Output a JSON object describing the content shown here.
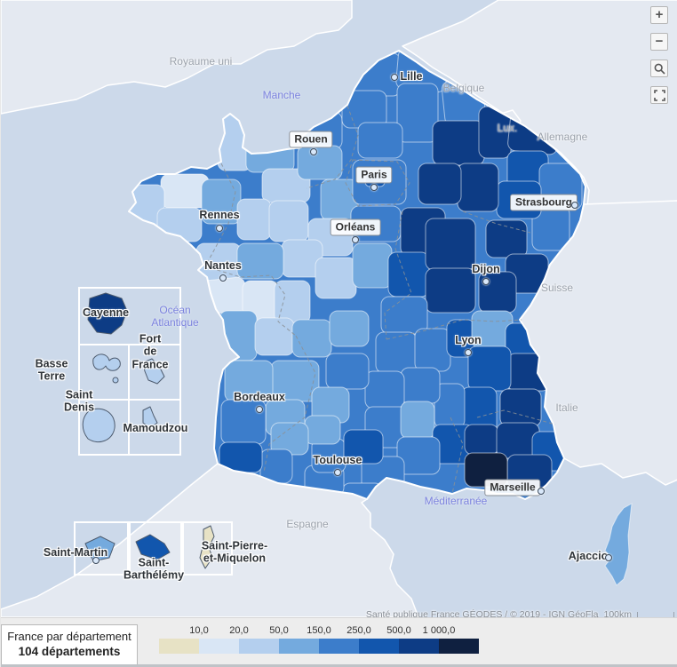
{
  "info_panel": {
    "title": "France par département",
    "count_line": "104 départements"
  },
  "legend": {
    "labels": [
      "10,0",
      "20,0",
      "50,0",
      "150,0",
      "250,0",
      "500,0",
      "1 000,0"
    ],
    "colors": [
      "#e7e2c5",
      "#d9e6f5",
      "#b4cfee",
      "#74aade",
      "#3c7dcb",
      "#1256ad",
      "#0d3c85",
      "#0f2040"
    ]
  },
  "attribution": {
    "text": "Santé publique France GÉODES / © 2019 - IGN GéoFla",
    "scale": "100km"
  },
  "controls": {
    "zoom_in": "+",
    "zoom_out": "−"
  },
  "map": {
    "colors": {
      "sea": "#ccd9ea",
      "foreign_land": "#e4e9f1",
      "coast": "#ffffff"
    },
    "cities": [
      {
        "id": "lille",
        "label": "Lille",
        "style": "halo"
      },
      {
        "id": "rouen",
        "label": "Rouen",
        "style": "box"
      },
      {
        "id": "paris",
        "label": "Paris",
        "style": "box"
      },
      {
        "id": "strasbourg",
        "label": "Strasbourg",
        "style": "box"
      },
      {
        "id": "rennes",
        "label": "Rennes",
        "style": "halo"
      },
      {
        "id": "orleans",
        "label": "Orléans",
        "style": "box"
      },
      {
        "id": "nantes",
        "label": "Nantes",
        "style": "halo"
      },
      {
        "id": "dijon",
        "label": "Dijon",
        "style": "halo"
      },
      {
        "id": "lyon",
        "label": "Lyon",
        "style": "halo"
      },
      {
        "id": "bordeaux",
        "label": "Bordeaux",
        "style": "halo"
      },
      {
        "id": "toulouse",
        "label": "Toulouse",
        "style": "halo"
      },
      {
        "id": "marseille",
        "label": "Marseille",
        "style": "box"
      },
      {
        "id": "ajaccio",
        "label": "Ajaccio",
        "style": "halo"
      }
    ],
    "territories": [
      {
        "id": "cayenne",
        "label": "Cayenne"
      },
      {
        "id": "fort-de-france",
        "label": "Fort\nde\nFrance"
      },
      {
        "id": "basse-terre",
        "label": "Basse\nTerre"
      },
      {
        "id": "saint-denis",
        "label": "Saint\nDenis"
      },
      {
        "id": "mamoudzou",
        "label": "Mamoudzou"
      },
      {
        "id": "saint-martin",
        "label": "Saint-Martin"
      },
      {
        "id": "saint-barthelemy",
        "label": "Saint-\nBarthélémy"
      },
      {
        "id": "saint-pierre-et-miquelon",
        "label": "Saint-Pierre-\net-Miquelon"
      }
    ],
    "countries": [
      {
        "id": "royaume-uni",
        "label": "Royaume uni"
      },
      {
        "id": "belgique",
        "label": "Belgique"
      },
      {
        "id": "lux",
        "label": "Lux."
      },
      {
        "id": "allemagne",
        "label": "Allemagne"
      },
      {
        "id": "suisse",
        "label": "Suisse"
      },
      {
        "id": "italie",
        "label": "Italie"
      },
      {
        "id": "espagne",
        "label": "Espagne"
      }
    ],
    "waters": [
      {
        "id": "manche",
        "label": "Manche"
      },
      {
        "id": "ocean-atlantique",
        "label": "Océan\nAtlantique"
      },
      {
        "id": "mediterranee",
        "label": "Méditerranée"
      }
    ]
  }
}
